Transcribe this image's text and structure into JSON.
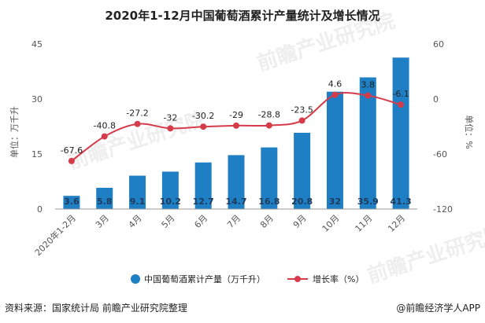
{
  "chart_data": {
    "type": "bar",
    "title": "2020年1-12月中国葡萄酒累计产量统计及增长情况",
    "categories": [
      "2020年1-2月",
      "3月",
      "4月",
      "5月",
      "6月",
      "7月",
      "8月",
      "9月",
      "10月",
      "11月",
      "12月"
    ],
    "y_left": {
      "label": "单位：万千升",
      "range": [
        0,
        45
      ],
      "ticks": [
        "0",
        "15",
        "30",
        "45"
      ]
    },
    "y_right": {
      "label": "单位：%",
      "range": [
        -120,
        60
      ],
      "ticks": [
        "60",
        "0",
        "-60",
        "-120"
      ]
    },
    "series": [
      {
        "name": "中国葡萄酒累计产量（万千升）",
        "type": "bar",
        "axis": "left",
        "color": "#1f7fc4",
        "values": [
          3.6,
          5.8,
          9.1,
          10.2,
          12.7,
          14.7,
          16.8,
          20.8,
          32,
          35.9,
          41.3
        ],
        "labels": [
          "3.6",
          "5.8",
          "9.1",
          "10.2",
          "12.7",
          "14.7",
          "16.8",
          "20.8",
          "32",
          "35.9",
          "41.3"
        ]
      },
      {
        "name": "增长率（%）",
        "type": "line",
        "axis": "right",
        "color": "#d63b4a",
        "values": [
          -67.6,
          -40.8,
          -27.2,
          -32,
          -30.2,
          -29,
          -28.8,
          -23.5,
          4.6,
          3.8,
          -6.1
        ],
        "labels": [
          "-67.6",
          "-40.8",
          "-27.2",
          "-32",
          "-30.2",
          "-29",
          "-28.8",
          "-23.5",
          "4.6",
          "3.8",
          "-6.1"
        ]
      }
    ],
    "grid": false,
    "legend": "bottom"
  },
  "footer": {
    "source": "资料来源：国家统计局 前瞻产业研究院整理",
    "brand": "@前瞻经济学人APP"
  },
  "watermark": "前瞻产业研究院"
}
